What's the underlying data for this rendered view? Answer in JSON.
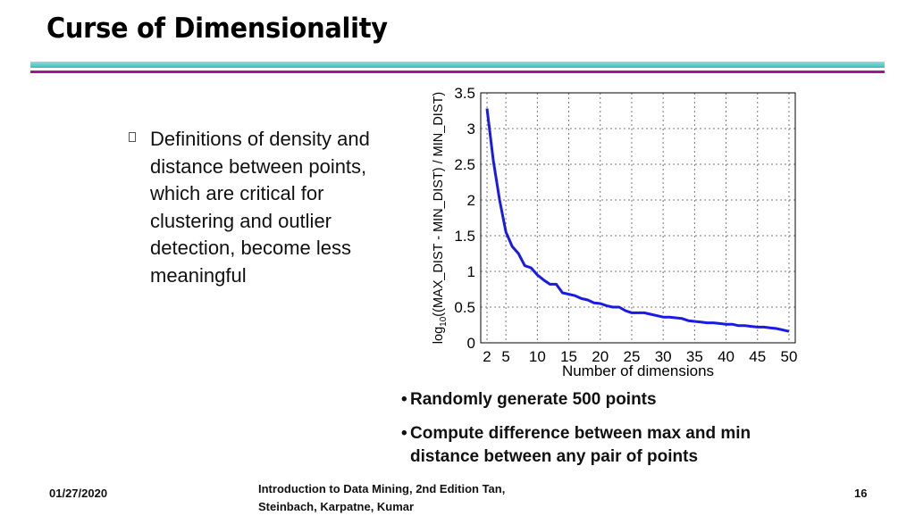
{
  "title": "Curse of Dimensionality",
  "bullet_main": "Definitions of density and distance between points, which are critical for clustering and outlier detection, become less meaningful",
  "sub_bullets": [
    "Randomly generate 500 points",
    "Compute difference between max and min distance between any pair of points"
  ],
  "footer": {
    "date": "01/27/2020",
    "citation": "Introduction to Data Mining, 2nd Edition   Tan, Steinbach, Karpatne, Kumar",
    "page": "16"
  },
  "colors": {
    "accent_teal": "#3fbcbc",
    "accent_purple": "#a0159a",
    "series": "#1a1ae6"
  },
  "chart_data": {
    "type": "line",
    "xlabel": "Number of dimensions",
    "ylabel_prefix": "log",
    "ylabel_sub": "10",
    "ylabel_rest": "((MAX_DIST - MIN_DIST) / MIN_DIST)",
    "xlim": [
      1,
      51
    ],
    "ylim": [
      0,
      3.5
    ],
    "xticks": [
      2,
      5,
      10,
      15,
      20,
      25,
      30,
      35,
      40,
      45,
      50
    ],
    "yticks": [
      0,
      0.5,
      1,
      1.5,
      2,
      2.5,
      3,
      3.5
    ],
    "ytick_labels": [
      "0",
      "0.5",
      "1",
      "1.5",
      "2",
      "2.5",
      "3",
      "3.5"
    ],
    "grid": true,
    "series": [
      {
        "x": [
          2,
          3,
          4,
          5,
          6,
          7,
          8,
          9,
          10,
          11,
          12,
          13,
          14,
          15,
          16,
          17,
          18,
          19,
          20,
          21,
          22,
          23,
          24,
          25,
          26,
          27,
          28,
          29,
          30,
          31,
          32,
          33,
          34,
          35,
          36,
          37,
          38,
          39,
          40,
          41,
          42,
          43,
          44,
          45,
          46,
          47,
          48,
          49,
          50
        ],
        "values": [
          3.28,
          2.55,
          2.0,
          1.55,
          1.35,
          1.25,
          1.08,
          1.05,
          0.95,
          0.88,
          0.82,
          0.82,
          0.7,
          0.68,
          0.66,
          0.62,
          0.6,
          0.56,
          0.55,
          0.52,
          0.5,
          0.5,
          0.45,
          0.42,
          0.42,
          0.42,
          0.4,
          0.38,
          0.36,
          0.36,
          0.35,
          0.34,
          0.31,
          0.3,
          0.29,
          0.28,
          0.28,
          0.27,
          0.26,
          0.26,
          0.24,
          0.24,
          0.23,
          0.22,
          0.22,
          0.21,
          0.2,
          0.18,
          0.16
        ]
      }
    ]
  }
}
